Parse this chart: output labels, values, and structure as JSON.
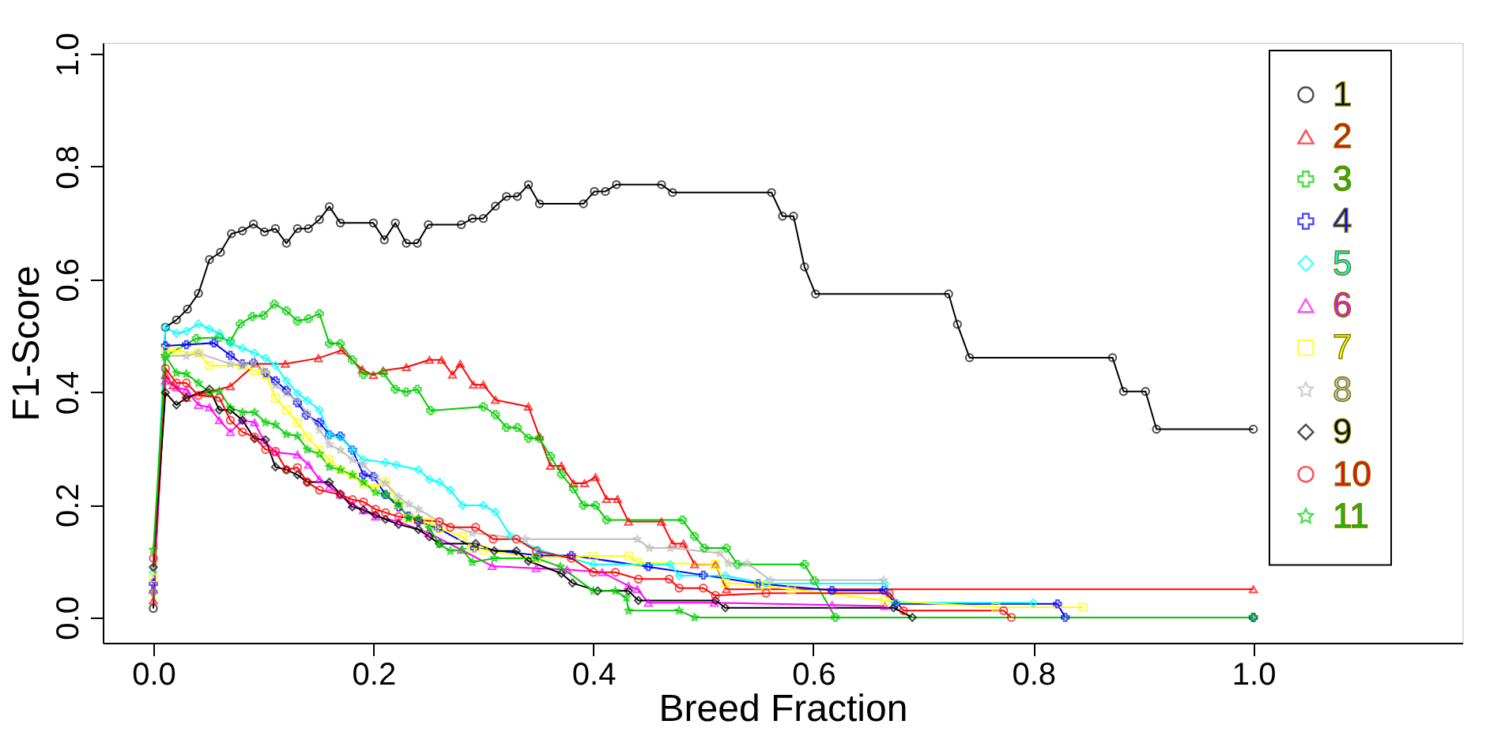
{
  "chart_data": {
    "type": "line",
    "xlabel": "Breed Fraction",
    "ylabel": "F1-Score",
    "xlim": [
      -0.046,
      1.19
    ],
    "ylim": [
      -0.045,
      1.02
    ],
    "xticks": [
      {
        "value": 0,
        "label": "0.0"
      },
      0.2,
      0.4,
      0.6,
      0.8,
      {
        "value": 1,
        "label": "1.0"
      }
    ],
    "yticks": [
      {
        "value": 0,
        "label": "0.0"
      },
      0.2,
      0.4,
      0.6,
      0.8,
      {
        "value": 1,
        "label": "1.0"
      }
    ],
    "grid": false,
    "legend": "top right",
    "line_style": "solid",
    "series": [
      {
        "name": "1",
        "color": "#000000",
        "marker": "circle",
        "x": [
          0,
          0.011,
          0.021,
          0.031,
          0.041,
          0.051,
          0.061,
          0.071,
          0.081,
          0.091,
          0.101,
          0.111,
          0.121,
          0.131,
          0.141,
          0.151,
          0.16,
          0.17,
          0.2,
          0.21,
          0.22,
          0.23,
          0.24,
          0.25,
          0.28,
          0.29,
          0.3,
          0.311,
          0.321,
          0.331,
          0.341,
          0.351,
          0.391,
          0.401,
          0.411,
          0.421,
          0.462,
          0.472,
          0.562,
          0.572,
          0.582,
          0.592,
          0.602,
          0.723,
          0.731,
          0.742,
          0.872,
          0.882,
          0.902,
          0.912,
          1.0
        ],
        "values": [
          0.016,
          0.515,
          0.528,
          0.547,
          0.575,
          0.635,
          0.648,
          0.681,
          0.686,
          0.698,
          0.684,
          0.69,
          0.664,
          0.69,
          0.69,
          0.706,
          0.729,
          0.7,
          0.7,
          0.67,
          0.7,
          0.664,
          0.664,
          0.697,
          0.697,
          0.708,
          0.708,
          0.73,
          0.747,
          0.747,
          0.768,
          0.734,
          0.734,
          0.756,
          0.756,
          0.768,
          0.768,
          0.754,
          0.754,
          0.712,
          0.712,
          0.622,
          0.574,
          0.574,
          0.52,
          0.461,
          0.461,
          0.401,
          0.401,
          0.334,
          0.334
        ]
      },
      {
        "name": "2",
        "color": "#ff0000",
        "marker": "triangle",
        "x": [
          0,
          0.011,
          0.018,
          0.03,
          0.05,
          0.07,
          0.093,
          0.12,
          0.15,
          0.171,
          0.19,
          0.2,
          0.209,
          0.23,
          0.251,
          0.262,
          0.272,
          0.279,
          0.291,
          0.3,
          0.311,
          0.341,
          0.351,
          0.361,
          0.371,
          0.382,
          0.392,
          0.402,
          0.412,
          0.422,
          0.432,
          0.462,
          0.472,
          0.482,
          0.492,
          0.511,
          0.521,
          1.0
        ],
        "values": [
          0.03,
          0.43,
          0.412,
          0.39,
          0.4,
          0.41,
          0.45,
          0.45,
          0.46,
          0.474,
          0.44,
          0.43,
          0.438,
          0.444,
          0.457,
          0.457,
          0.431,
          0.45,
          0.413,
          0.413,
          0.386,
          0.374,
          0.321,
          0.269,
          0.269,
          0.238,
          0.238,
          0.249,
          0.21,
          0.21,
          0.17,
          0.17,
          0.131,
          0.131,
          0.094,
          0.094,
          0.05,
          0.05
        ]
      },
      {
        "name": "3",
        "color": "#00cd00",
        "marker": "cross",
        "x": [
          0,
          0.011,
          0.039,
          0.06,
          0.07,
          0.079,
          0.09,
          0.1,
          0.11,
          0.121,
          0.131,
          0.141,
          0.151,
          0.16,
          0.17,
          0.181,
          0.191,
          0.209,
          0.22,
          0.23,
          0.24,
          0.252,
          0.3,
          0.311,
          0.321,
          0.331,
          0.341,
          0.351,
          0.361,
          0.371,
          0.382,
          0.391,
          0.402,
          0.412,
          0.481,
          0.492,
          0.501,
          0.521,
          0.531,
          0.592,
          0.601,
          0.62,
          1.0
        ],
        "values": [
          0.045,
          0.464,
          0.495,
          0.497,
          0.49,
          0.521,
          0.534,
          0.536,
          0.556,
          0.544,
          0.526,
          0.53,
          0.539,
          0.486,
          0.486,
          0.457,
          0.431,
          0.434,
          0.405,
          0.4,
          0.405,
          0.367,
          0.374,
          0.36,
          0.337,
          0.337,
          0.318,
          0.318,
          0.286,
          0.254,
          0.228,
          0.199,
          0.199,
          0.173,
          0.173,
          0.144,
          0.123,
          0.123,
          0.094,
          0.094,
          0.065,
          0.0,
          0.0
        ]
      },
      {
        "name": "4",
        "color": "#0000ff",
        "marker": "cross",
        "x": [
          0,
          0.011,
          0.03,
          0.055,
          0.07,
          0.081,
          0.091,
          0.102,
          0.111,
          0.121,
          0.131,
          0.139,
          0.151,
          0.16,
          0.17,
          0.181,
          0.191,
          0.2,
          0.211,
          0.223,
          0.232,
          0.241,
          0.259,
          0.292,
          0.35,
          0.38,
          0.45,
          0.5,
          0.55,
          0.617,
          0.664,
          0.675,
          0.822,
          0.829,
          1.0
        ],
        "values": [
          0.06,
          0.482,
          0.484,
          0.487,
          0.465,
          0.45,
          0.452,
          0.434,
          0.42,
          0.403,
          0.381,
          0.359,
          0.346,
          0.324,
          0.322,
          0.297,
          0.253,
          0.25,
          0.218,
          0.196,
          0.18,
          0.17,
          0.158,
          0.123,
          0.11,
          0.11,
          0.09,
          0.075,
          0.06,
          0.048,
          0.048,
          0.024,
          0.024,
          0.0,
          0.0
        ]
      },
      {
        "name": "5",
        "color": "#00ffff",
        "marker": "diamond",
        "x": [
          0,
          0.011,
          0.021,
          0.03,
          0.041,
          0.051,
          0.06,
          0.07,
          0.081,
          0.092,
          0.102,
          0.111,
          0.121,
          0.131,
          0.14,
          0.151,
          0.16,
          0.17,
          0.181,
          0.191,
          0.211,
          0.221,
          0.241,
          0.251,
          0.26,
          0.27,
          0.281,
          0.3,
          0.311,
          0.325,
          0.35,
          0.4,
          0.47,
          0.478,
          0.52,
          0.557,
          0.665,
          0.675,
          0.8
        ],
        "values": [
          0.08,
          0.515,
          0.504,
          0.508,
          0.521,
          0.512,
          0.504,
          0.486,
          0.478,
          0.469,
          0.46,
          0.447,
          0.42,
          0.398,
          0.385,
          0.368,
          0.324,
          0.32,
          0.297,
          0.28,
          0.275,
          0.271,
          0.262,
          0.245,
          0.24,
          0.226,
          0.199,
          0.199,
          0.187,
          0.144,
          0.12,
          0.094,
          0.094,
          0.074,
          0.074,
          0.06,
          0.06,
          0.026,
          0.026
        ]
      },
      {
        "name": "6",
        "color": "#ff00ff",
        "marker": "triangle",
        "x": [
          0,
          0.011,
          0.021,
          0.03,
          0.041,
          0.051,
          0.06,
          0.07,
          0.081,
          0.092,
          0.1,
          0.111,
          0.131,
          0.141,
          0.151,
          0.16,
          0.17,
          0.181,
          0.191,
          0.202,
          0.223,
          0.25,
          0.28,
          0.308,
          0.348,
          0.376,
          0.408,
          0.432,
          0.44,
          0.45,
          0.51,
          0.617,
          0.665
        ],
        "values": [
          0.05,
          0.42,
          0.408,
          0.404,
          0.377,
          0.373,
          0.35,
          0.329,
          0.35,
          0.346,
          0.315,
          0.293,
          0.289,
          0.271,
          0.245,
          0.232,
          0.218,
          0.201,
          0.19,
          0.179,
          0.17,
          0.15,
          0.12,
          0.091,
          0.087,
          0.085,
          0.08,
          0.056,
          0.05,
          0.026,
          0.026,
          0.022,
          0.02
        ]
      },
      {
        "name": "7",
        "color": "#ffff00",
        "marker": "square",
        "x": [
          0,
          0.011,
          0.021,
          0.041,
          0.051,
          0.081,
          0.092,
          0.102,
          0.111,
          0.121,
          0.131,
          0.14,
          0.151,
          0.16,
          0.17,
          0.181,
          0.191,
          0.202,
          0.211,
          0.223,
          0.232,
          0.25,
          0.26,
          0.281,
          0.29,
          0.3,
          0.348,
          0.4,
          0.432,
          0.44,
          0.511,
          0.52,
          0.55,
          0.557,
          0.58,
          0.665,
          0.766,
          0.845
        ],
        "values": [
          0.07,
          0.473,
          0.473,
          0.469,
          0.447,
          0.447,
          0.438,
          0.431,
          0.389,
          0.368,
          0.346,
          0.32,
          0.297,
          0.28,
          0.262,
          0.253,
          0.237,
          0.23,
          0.241,
          0.201,
          0.176,
          0.17,
          0.158,
          0.144,
          0.123,
          0.12,
          0.105,
          0.109,
          0.109,
          0.098,
          0.094,
          0.061,
          0.058,
          0.056,
          0.05,
          0.03,
          0.018,
          0.018
        ]
      },
      {
        "name": "8",
        "color": "#bebebe",
        "marker": "star",
        "x": [
          0,
          0.011,
          0.03,
          0.041,
          0.07,
          0.081,
          0.091,
          0.1,
          0.111,
          0.121,
          0.131,
          0.14,
          0.151,
          0.16,
          0.17,
          0.181,
          0.191,
          0.202,
          0.211,
          0.223,
          0.232,
          0.241,
          0.26,
          0.29,
          0.338,
          0.44,
          0.451,
          0.47,
          0.515,
          0.523,
          0.54,
          0.561,
          0.664
        ],
        "values": [
          0.09,
          0.464,
          0.464,
          0.469,
          0.45,
          0.447,
          0.452,
          0.438,
          0.412,
          0.398,
          0.385,
          0.363,
          0.333,
          0.307,
          0.297,
          0.28,
          0.271,
          0.249,
          0.238,
          0.214,
          0.201,
          0.192,
          0.17,
          0.15,
          0.139,
          0.139,
          0.123,
          0.123,
          0.114,
          0.096,
          0.096,
          0.066,
          0.066
        ]
      },
      {
        "name": "9",
        "color": "#000000",
        "marker": "diamond",
        "x": [
          0,
          0.011,
          0.021,
          0.03,
          0.051,
          0.06,
          0.07,
          0.081,
          0.092,
          0.102,
          0.111,
          0.121,
          0.131,
          0.14,
          0.16,
          0.17,
          0.181,
          0.191,
          0.202,
          0.211,
          0.223,
          0.241,
          0.251,
          0.26,
          0.293,
          0.31,
          0.33,
          0.341,
          0.371,
          0.381,
          0.404,
          0.432,
          0.441,
          0.511,
          0.52,
          0.673,
          0.69
        ],
        "values": [
          0.089,
          0.399,
          0.377,
          0.39,
          0.405,
          0.368,
          0.368,
          0.35,
          0.317,
          0.315,
          0.267,
          0.262,
          0.253,
          0.24,
          0.24,
          0.219,
          0.196,
          0.191,
          0.182,
          0.174,
          0.165,
          0.156,
          0.143,
          0.131,
          0.131,
          0.118,
          0.118,
          0.1,
          0.078,
          0.061,
          0.047,
          0.047,
          0.03,
          0.03,
          0.017,
          0.017,
          0.0
        ]
      },
      {
        "name": "10",
        "color": "#ff0000",
        "marker": "circle",
        "x": [
          0,
          0.011,
          0.021,
          0.03,
          0.041,
          0.06,
          0.07,
          0.081,
          0.092,
          0.102,
          0.111,
          0.121,
          0.131,
          0.14,
          0.151,
          0.17,
          0.181,
          0.191,
          0.202,
          0.211,
          0.223,
          0.241,
          0.26,
          0.27,
          0.293,
          0.309,
          0.33,
          0.348,
          0.38,
          0.4,
          0.42,
          0.441,
          0.469,
          0.478,
          0.5,
          0.511,
          0.557,
          0.669,
          0.682,
          0.773,
          0.78
        ],
        "values": [
          0.105,
          0.442,
          0.416,
          0.416,
          0.394,
          0.39,
          0.35,
          0.329,
          0.32,
          0.298,
          0.295,
          0.262,
          0.266,
          0.24,
          0.226,
          0.218,
          0.209,
          0.205,
          0.192,
          0.186,
          0.179,
          0.173,
          0.17,
          0.16,
          0.16,
          0.139,
          0.139,
          0.118,
          0.105,
          0.08,
          0.08,
          0.068,
          0.068,
          0.052,
          0.052,
          0.039,
          0.043,
          0.043,
          0.012,
          0.012,
          0.0
        ]
      },
      {
        "name": "11",
        "color": "#00cd00",
        "marker": "star",
        "x": [
          0,
          0.011,
          0.021,
          0.03,
          0.041,
          0.051,
          0.06,
          0.07,
          0.081,
          0.092,
          0.102,
          0.111,
          0.121,
          0.131,
          0.14,
          0.151,
          0.16,
          0.17,
          0.181,
          0.191,
          0.202,
          0.211,
          0.223,
          0.232,
          0.241,
          0.251,
          0.26,
          0.27,
          0.281,
          0.29,
          0.31,
          0.348,
          0.37,
          0.4,
          0.42,
          0.43,
          0.432,
          0.478,
          0.492,
          1.0
        ],
        "values": [
          0.12,
          0.464,
          0.434,
          0.432,
          0.416,
          0.399,
          0.402,
          0.372,
          0.364,
          0.364,
          0.346,
          0.342,
          0.325,
          0.322,
          0.298,
          0.29,
          0.267,
          0.262,
          0.253,
          0.24,
          0.222,
          0.218,
          0.201,
          0.176,
          0.176,
          0.158,
          0.13,
          0.118,
          0.12,
          0.098,
          0.105,
          0.105,
          0.09,
          0.047,
          0.047,
          0.035,
          0.012,
          0.012,
          0.0,
          0.0
        ]
      }
    ]
  }
}
